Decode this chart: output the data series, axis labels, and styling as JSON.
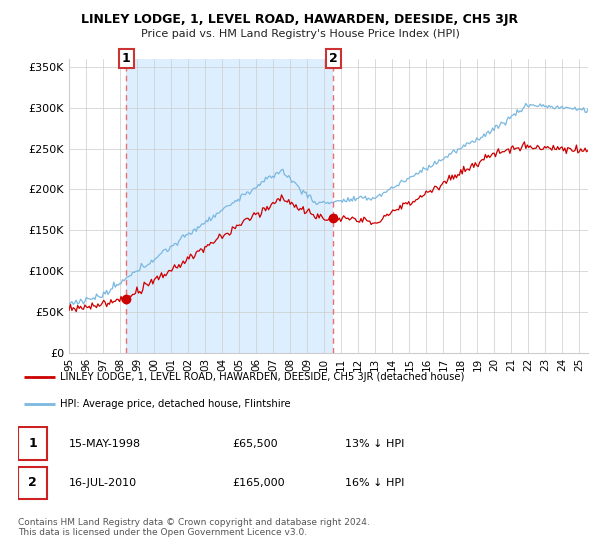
{
  "title": "LINLEY LODGE, 1, LEVEL ROAD, HAWARDEN, DEESIDE, CH5 3JR",
  "subtitle": "Price paid vs. HM Land Registry's House Price Index (HPI)",
  "legend_line1": "LINLEY LODGE, 1, LEVEL ROAD, HAWARDEN, DEESIDE, CH5 3JR (detached house)",
  "legend_line2": "HPI: Average price, detached house, Flintshire",
  "transaction1_date": "15-MAY-1998",
  "transaction1_price": "£65,500",
  "transaction1_hpi": "13% ↓ HPI",
  "transaction2_date": "16-JUL-2010",
  "transaction2_price": "£165,000",
  "transaction2_hpi": "16% ↓ HPI",
  "footer": "Contains HM Land Registry data © Crown copyright and database right 2024.\nThis data is licensed under the Open Government Licence v3.0.",
  "ylim": [
    0,
    360000
  ],
  "yticks": [
    0,
    50000,
    100000,
    150000,
    200000,
    250000,
    300000,
    350000
  ],
  "ytick_labels": [
    "£0",
    "£50K",
    "£100K",
    "£150K",
    "£200K",
    "£250K",
    "£300K",
    "£350K"
  ],
  "hpi_color": "#7ab8e0",
  "price_color": "#cc0000",
  "dashed_line_color": "#e87070",
  "shade_color": "#ddeeff",
  "background_color": "#ffffff",
  "grid_color": "#cccccc",
  "transaction1_x": 1998.37,
  "transaction2_x": 2010.54,
  "transaction1_y": 65500,
  "transaction2_y": 165000,
  "xmin": 1995.0,
  "xmax": 2025.5
}
